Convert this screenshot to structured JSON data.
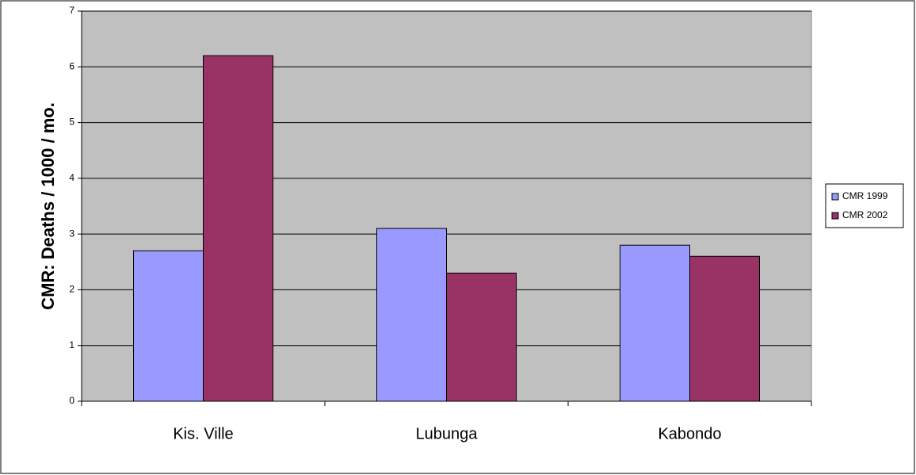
{
  "chart_data": {
    "type": "bar",
    "y_label": "CMR: Deaths / 1000 / mo.",
    "categories": [
      "Kis. Ville",
      "Lubunga",
      "Kabondo"
    ],
    "series": [
      {
        "name": "CMR 1999",
        "color": "#9999ff",
        "values": [
          2.7,
          3.1,
          2.8
        ]
      },
      {
        "name": "CMR 2002",
        "color": "#993366",
        "values": [
          6.2,
          2.3,
          2.6
        ]
      }
    ],
    "ylim": [
      0,
      7
    ],
    "yticks": [
      0,
      1,
      2,
      3,
      4,
      5,
      6,
      7
    ],
    "grid": true,
    "legend": "right"
  }
}
